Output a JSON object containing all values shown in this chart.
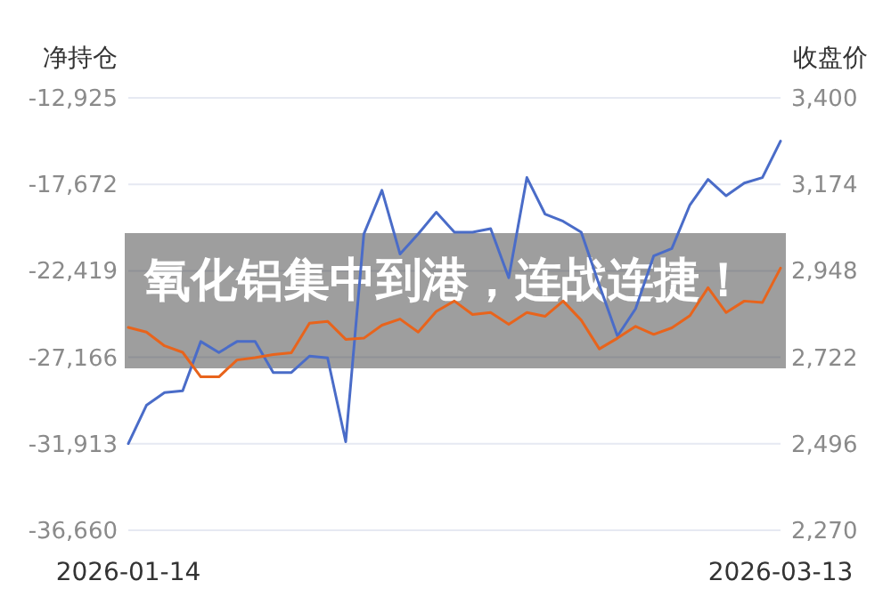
{
  "chart_data": {
    "type": "line",
    "title": "氧化铝集中到港，连战连捷！",
    "ylabel": "净持仓",
    "y2label": "收盘价",
    "categories": [
      "2026-01-14",
      null,
      null,
      null,
      null,
      null,
      null,
      null,
      null,
      null,
      null,
      null,
      null,
      null,
      null,
      null,
      null,
      null,
      null,
      null,
      null,
      null,
      null,
      null,
      null,
      null,
      null,
      null,
      null,
      null,
      null,
      null,
      null,
      null,
      null,
      null,
      "2026-03-13"
    ],
    "series": [
      {
        "color": "#4a6cc8",
        "axis": "y",
        "values": [
          -31900,
          -29800,
          -29100,
          -29000,
          -26300,
          -26900,
          -26300,
          -26300,
          -28000,
          -28000,
          -27100,
          -27200,
          -31800,
          -20400,
          -18000,
          -21500,
          -20400,
          -19200,
          -20300,
          -20300,
          -20100,
          -22800,
          -17300,
          -19300,
          -19700,
          -20300,
          -23200,
          -26000,
          -24500,
          -21600,
          -21200,
          -18800,
          -17400,
          -18300,
          -17600,
          -17300,
          -15300
        ]
      },
      {
        "color": "#e8641c",
        "axis": "y2",
        "values": [
          2800,
          2788,
          2752,
          2735,
          2671,
          2671,
          2715,
          2721,
          2729,
          2734,
          2811,
          2816,
          2769,
          2772,
          2806,
          2822,
          2788,
          2842,
          2869,
          2834,
          2839,
          2808,
          2839,
          2829,
          2869,
          2819,
          2744,
          2772,
          2803,
          2782,
          2799,
          2831,
          2904,
          2839,
          2869,
          2865,
          2955
        ]
      }
    ],
    "ylim": [
      -36660,
      -12925
    ],
    "yticks": [
      {
        "value": -36660,
        "label": "-36,660"
      },
      {
        "value": -31913,
        "label": "-31,913"
      },
      {
        "value": -27166,
        "label": "-27,166"
      },
      {
        "value": -22419,
        "label": "-22,419"
      },
      {
        "value": -17672,
        "label": "-17,672"
      },
      {
        "value": -12925,
        "label": "-12,925"
      }
    ],
    "y2lim": [
      2270,
      3400
    ],
    "y2ticks": [
      {
        "value": 2270,
        "label": "2,270"
      },
      {
        "value": 2496,
        "label": "2,496"
      },
      {
        "value": 2722,
        "label": "2,722"
      },
      {
        "value": 2948,
        "label": "2,948"
      },
      {
        "value": 3174,
        "label": "3,174"
      },
      {
        "value": 3400,
        "label": "3,400"
      }
    ],
    "grid": "y",
    "marker": "none",
    "line_style": "solid"
  }
}
